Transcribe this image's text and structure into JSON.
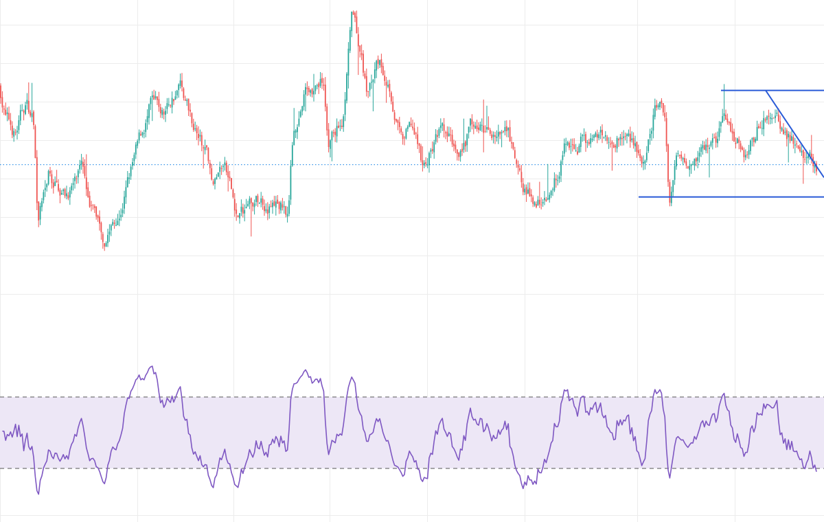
{
  "chart_data": [
    {
      "type": "candlestick",
      "title": "",
      "xlabel": "",
      "ylabel": "",
      "grid": true,
      "colors": {
        "up": "#26a69a",
        "down": "#ef5350",
        "reference_line": "#1e88e5",
        "trendline": "#2a5bd7",
        "grid": "#ececec"
      },
      "ylim": [
        0,
        100
      ],
      "reference_level": 49,
      "anchor_points": [
        [
          0,
          73
        ],
        [
          8,
          64
        ],
        [
          22,
          58
        ],
        [
          38,
          68
        ],
        [
          50,
          62
        ],
        [
          55,
          30
        ],
        [
          70,
          46
        ],
        [
          95,
          40
        ],
        [
          120,
          46
        ],
        [
          152,
          27
        ],
        [
          175,
          37
        ],
        [
          192,
          48
        ],
        [
          220,
          67
        ],
        [
          238,
          64
        ],
        [
          262,
          74
        ],
        [
          290,
          58
        ],
        [
          312,
          44
        ],
        [
          326,
          49
        ],
        [
          345,
          33
        ],
        [
          380,
          38
        ],
        [
          420,
          35
        ],
        [
          427,
          60
        ],
        [
          445,
          72
        ],
        [
          470,
          75
        ],
        [
          478,
          56
        ],
        [
          500,
          64
        ],
        [
          512,
          94
        ],
        [
          525,
          82
        ],
        [
          535,
          70
        ],
        [
          550,
          80
        ],
        [
          568,
          74
        ],
        [
          585,
          55
        ],
        [
          600,
          60
        ],
        [
          617,
          48
        ],
        [
          640,
          59
        ],
        [
          665,
          53
        ],
        [
          690,
          62
        ],
        [
          715,
          58
        ],
        [
          740,
          57
        ],
        [
          756,
          43
        ],
        [
          775,
          38
        ],
        [
          805,
          41
        ],
        [
          822,
          55
        ],
        [
          848,
          57
        ],
        [
          875,
          56
        ],
        [
          900,
          58
        ],
        [
          925,
          57
        ],
        [
          940,
          47
        ],
        [
          955,
          67
        ],
        [
          968,
          64
        ],
        [
          975,
          38
        ],
        [
          985,
          51
        ],
        [
          1010,
          54
        ],
        [
          1035,
          55
        ],
        [
          1058,
          63
        ],
        [
          1075,
          58
        ],
        [
          1090,
          52
        ],
        [
          1112,
          64
        ],
        [
          1122,
          65
        ],
        [
          1140,
          59
        ],
        [
          1160,
          54
        ],
        [
          1180,
          51
        ],
        [
          1190,
          48
        ]
      ],
      "annotations": [
        {
          "kind": "horizontal-line",
          "label": "",
          "y": 72,
          "x_start": 1050,
          "x_end": 1200
        },
        {
          "kind": "horizontal-line",
          "label": "",
          "y": 39,
          "x_start": 930,
          "x_end": 1200
        },
        {
          "kind": "trendline",
          "label": "",
          "from": [
            1115,
            72
          ],
          "to": [
            1200,
            45
          ]
        }
      ]
    },
    {
      "type": "line",
      "series": [
        {
          "name": "",
          "color": "#7e57c2"
        }
      ],
      "ylim": [
        0,
        100
      ],
      "band": {
        "lower": 30,
        "upper": 70,
        "fill": "#ede7f6"
      },
      "grid": true
    }
  ]
}
